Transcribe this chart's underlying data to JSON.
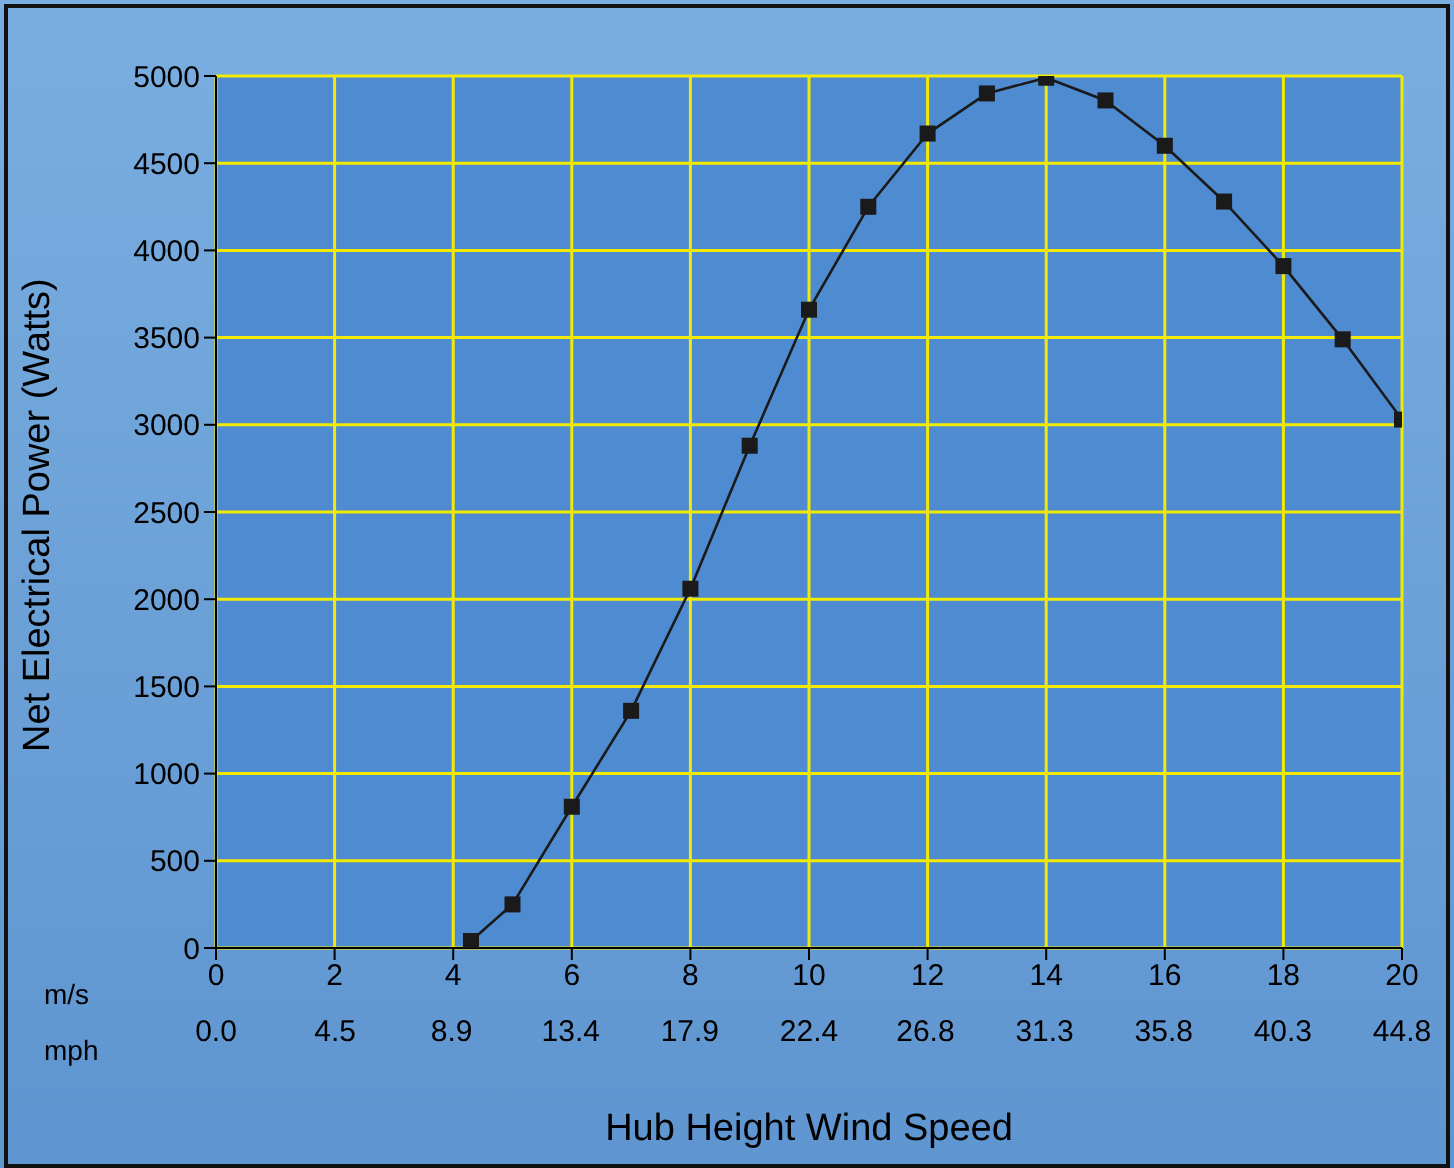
{
  "chart_data": {
    "type": "line",
    "xlabel": "Hub Height Wind Speed",
    "ylabel": "Net Electrical Power (Watts)",
    "annotations": [
      "m/s",
      "mph"
    ],
    "x": [
      4.3,
      5,
      6,
      7,
      8,
      9,
      10,
      11,
      12,
      13,
      14,
      15,
      16,
      17,
      18,
      19,
      20
    ],
    "series": [
      {
        "color": "#1a1a1a",
        "values": [
          40,
          250,
          810,
          1360,
          2060,
          2880,
          3660,
          4250,
          4670,
          4900,
          4990,
          4860,
          4600,
          4280,
          3910,
          3490,
          3030
        ]
      }
    ],
    "xlim": [
      0,
      20
    ],
    "xticks": [
      0,
      2,
      4,
      6,
      8,
      10,
      12,
      14,
      16,
      18,
      20
    ],
    "x2lim": [
      0,
      44.8
    ],
    "x2ticks": [
      {
        "value": 0,
        "label": "0.0"
      },
      4.5,
      8.9,
      13.4,
      17.9,
      22.4,
      26.8,
      31.3,
      35.8,
      40.3,
      44.8
    ],
    "ylim": [
      0,
      5000
    ],
    "yticks": [
      0,
      500,
      1000,
      1500,
      2000,
      2500,
      3000,
      3500,
      4000,
      4500,
      5000
    ],
    "grid": true,
    "marker": "square",
    "line_style": "solid",
    "legend": false
  }
}
